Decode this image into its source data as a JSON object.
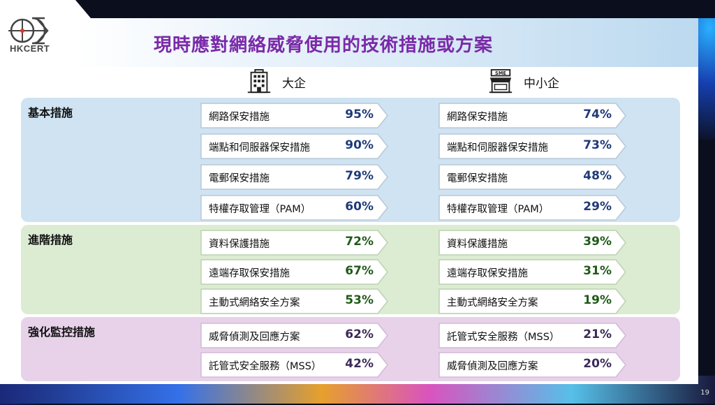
{
  "logo": {
    "text": "HKCERT"
  },
  "title": "現時應對網絡威脅使用的技術措施或方案",
  "columns": {
    "large": "大企",
    "sme": "中小企"
  },
  "groups": [
    {
      "label": "基本措施",
      "color": "blue",
      "large": [
        {
          "name": "網路保安措施",
          "pct": "95%"
        },
        {
          "name": "端點和伺服器保安措施",
          "pct": "90%"
        },
        {
          "name": "電郵保安措施",
          "pct": "79%"
        },
        {
          "name": "特權存取管理（PAM）",
          "pct": "60%"
        }
      ],
      "sme": [
        {
          "name": "網路保安措施",
          "pct": "74%"
        },
        {
          "name": "端點和伺服器保安措施",
          "pct": "73%"
        },
        {
          "name": "電郵保安措施",
          "pct": "48%"
        },
        {
          "name": "特權存取管理（PAM）",
          "pct": "29%"
        }
      ]
    },
    {
      "label": "進階措施",
      "color": "green",
      "large": [
        {
          "name": "資料保護措施",
          "pct": "72%"
        },
        {
          "name": "遠端存取保安措施",
          "pct": "67%"
        },
        {
          "name": "主動式網絡安全方案",
          "pct": "53%"
        }
      ],
      "sme": [
        {
          "name": "資料保護措施",
          "pct": "39%"
        },
        {
          "name": "遠端存取保安措施",
          "pct": "31%"
        },
        {
          "name": "主動式網絡安全方案",
          "pct": "19%"
        }
      ]
    },
    {
      "label": "強化監控措施",
      "color": "purple",
      "large": [
        {
          "name": "威脅偵測及回應方案",
          "pct": "62%"
        },
        {
          "name": "託管式安全服務（MSS）",
          "pct": "42%"
        }
      ],
      "sme": [
        {
          "name": "託管式安全服務（MSS）",
          "pct": "21%"
        },
        {
          "name": "威脅偵測及回應方案",
          "pct": "20%"
        }
      ]
    }
  ],
  "icons": {
    "large": "office-building-icon",
    "sme": "sme-shop-icon"
  },
  "sme_sign": "SME",
  "page_number": "19"
}
